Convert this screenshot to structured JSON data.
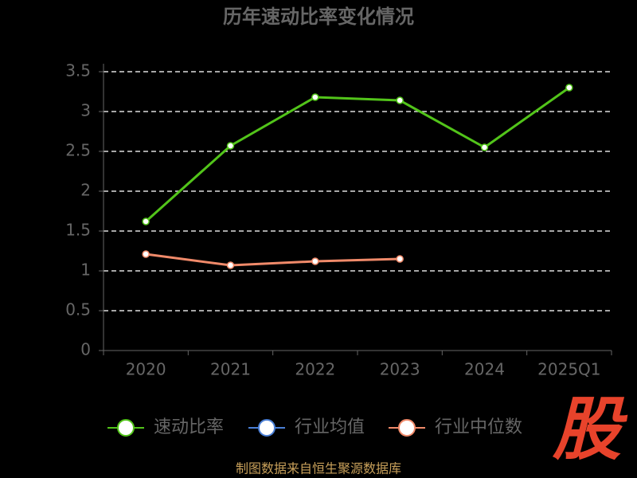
{
  "chart_data": {
    "type": "line",
    "title": "历年速动比率变化情况",
    "categories": [
      "2020",
      "2021",
      "2022",
      "2023",
      "2024",
      "2025Q1"
    ],
    "series": [
      {
        "name": "速动比率",
        "color": "#52c41a",
        "values": [
          1.62,
          2.57,
          3.18,
          3.14,
          2.55,
          3.3
        ]
      },
      {
        "name": "行业均值",
        "color": "#4a7fd6",
        "values": [
          null,
          null,
          null,
          null,
          null,
          null
        ]
      },
      {
        "name": "行业中位数",
        "color": "#f08a6a",
        "values": [
          1.21,
          1.07,
          1.12,
          1.15,
          null,
          null
        ]
      }
    ],
    "ylim": [
      0,
      3.5
    ],
    "yticks": [
      0,
      0.5,
      1,
      1.5,
      2,
      2.5,
      3,
      3.5
    ],
    "grid": true,
    "legend": "bottom",
    "source": "制图数据来自恒生聚源数据库",
    "watermark": "股"
  }
}
